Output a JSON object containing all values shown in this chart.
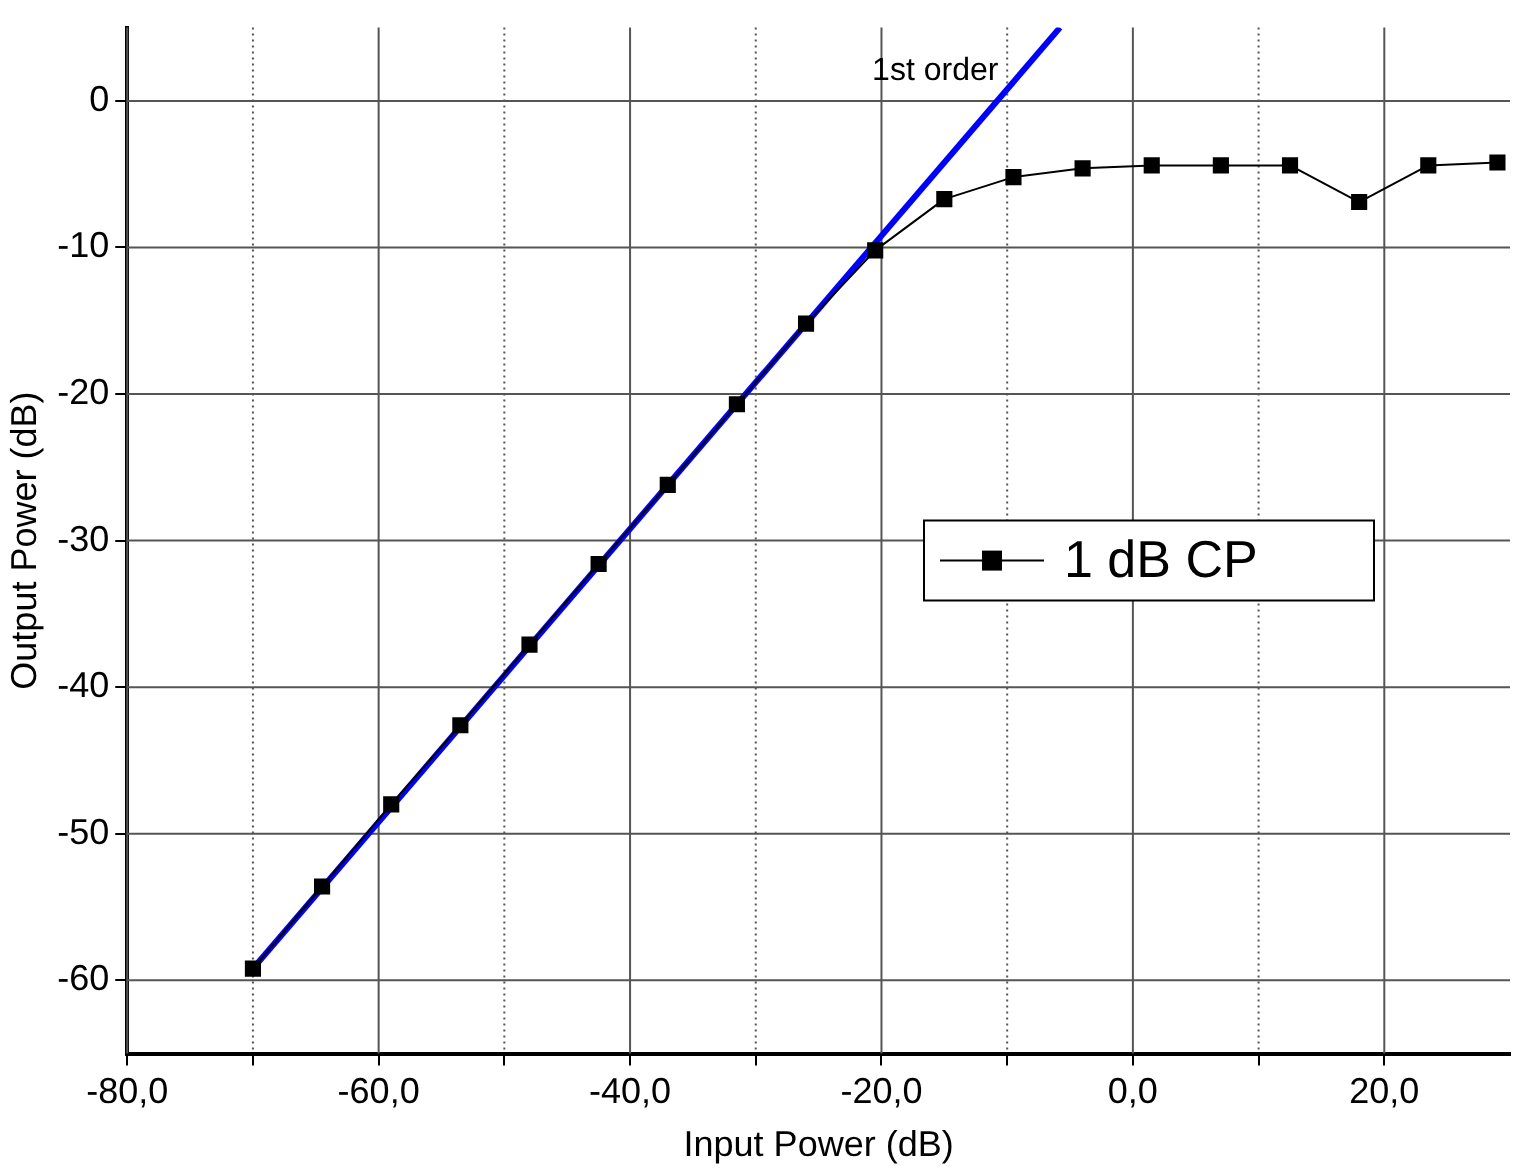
{
  "chart_data": {
    "type": "line",
    "xlabel": "Input Power (dB)",
    "ylabel": "Output Power (dB)",
    "xlim": [
      -80,
      30
    ],
    "ylim": [
      -65,
      5
    ],
    "xticks": [
      {
        "value": -80,
        "label": "-80,0"
      },
      {
        "value": -70,
        "label": null
      },
      {
        "value": -60,
        "label": "-60,0"
      },
      {
        "value": -50,
        "label": null
      },
      {
        "value": -40,
        "label": "-40,0"
      },
      {
        "value": -30,
        "label": null
      },
      {
        "value": -20,
        "label": "-20,0"
      },
      {
        "value": -10,
        "label": null
      },
      {
        "value": 0,
        "label": "0,0"
      },
      {
        "value": 10,
        "label": null
      },
      {
        "value": 20,
        "label": "20,0"
      }
    ],
    "yticks": [
      0,
      -10,
      -20,
      -30,
      -40,
      -50,
      -60
    ],
    "grid": true,
    "legend": "right",
    "marker": "square",
    "line_style": "solid",
    "series": [
      {
        "name": "1 dB CP",
        "color": "#000000",
        "x": [
          -70,
          -64.5,
          -59,
          -53.5,
          -48,
          -42.5,
          -37,
          -31.5,
          -26,
          -20.5,
          -15,
          -9.5,
          -4,
          1.5,
          7,
          12.5,
          18,
          23.5,
          29
        ],
        "values": [
          -59.2,
          -53.6,
          -48,
          -42.6,
          -37.1,
          -31.6,
          -26.2,
          -20.7,
          -15.2,
          -10.2,
          -6.7,
          -5.2,
          -4.6,
          -4.4,
          -4.4,
          -4.4,
          -6.9,
          -4.4,
          -4.2
        ]
      },
      {
        "type": "line",
        "color": "#0000ff",
        "marker": "none",
        "x": [
          -70,
          -5.8
        ],
        "values": [
          -59.2,
          5
        ]
      }
    ],
    "annotations": [
      "1st order"
    ]
  }
}
